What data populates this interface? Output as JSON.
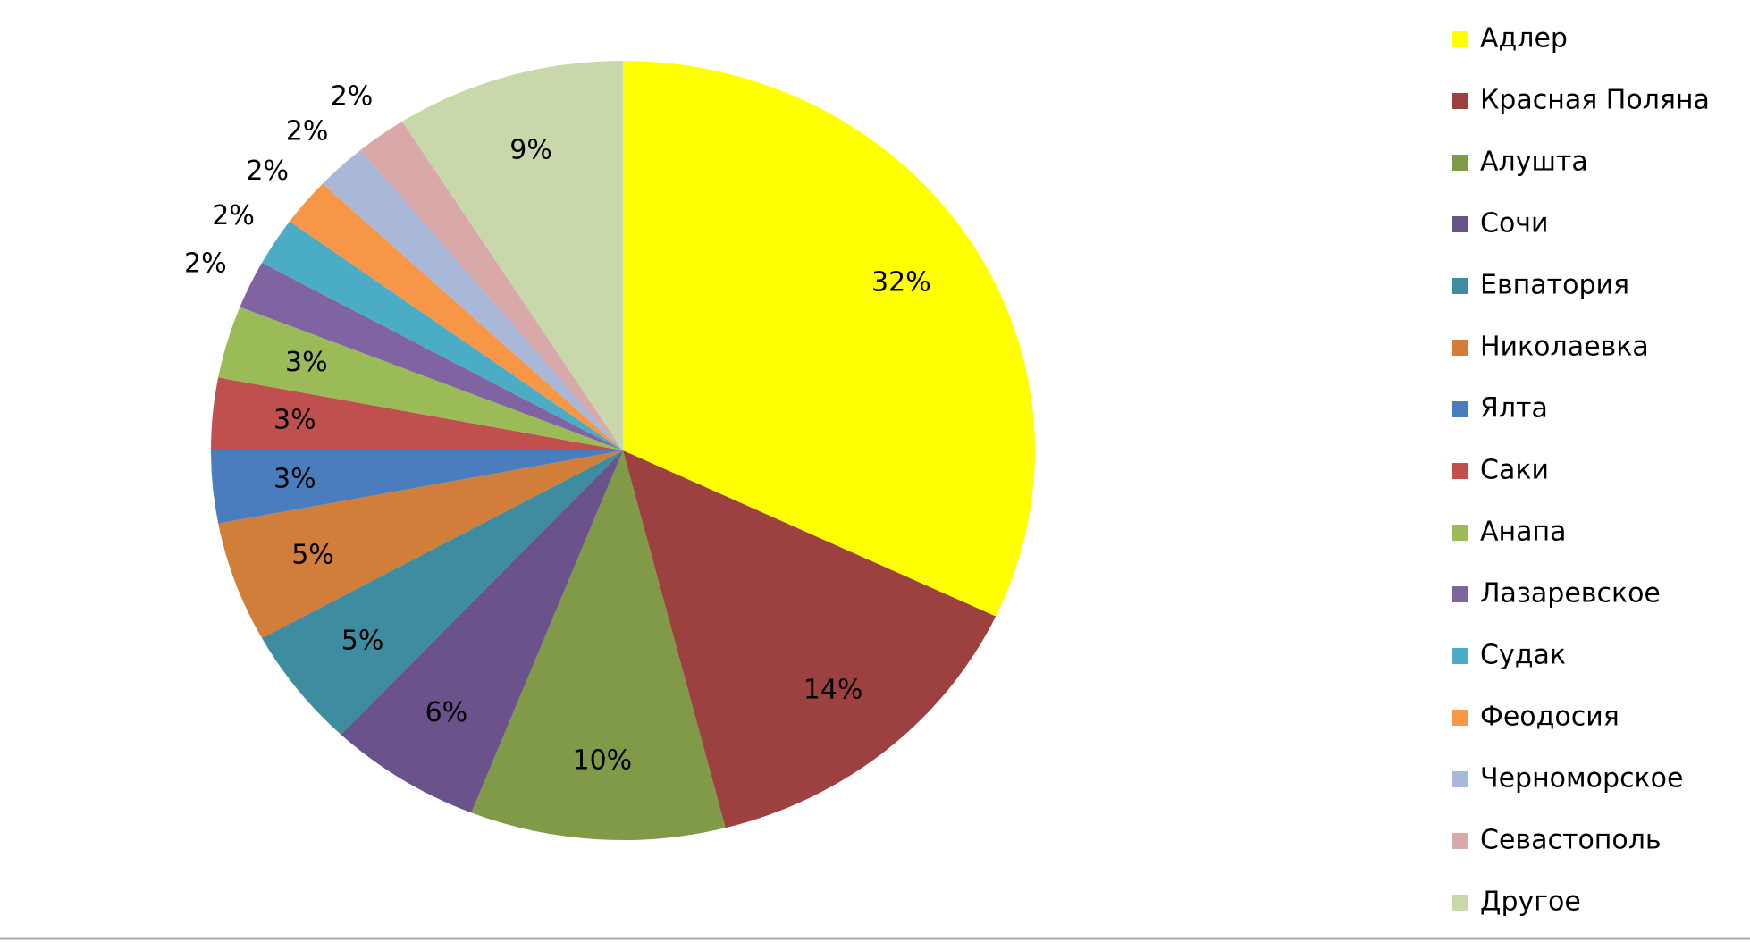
{
  "chart_data": {
    "type": "pie",
    "categories": [
      "Адлер",
      "Красная Поляна",
      "Алушта",
      "Сочи",
      "Евпатория",
      "Николаевка",
      "Ялта",
      "Саки",
      "Анапа",
      "Лазаревское",
      "Судак",
      "Феодосия",
      "Черноморское",
      "Севастополь",
      "Другое"
    ],
    "values": [
      32,
      14,
      10,
      6,
      5,
      5,
      3,
      3,
      3,
      2,
      2,
      2,
      2,
      2,
      9
    ],
    "value_labels": [
      "32%",
      "14%",
      "10%",
      "6%",
      "5%",
      "5%",
      "3%",
      "3%",
      "3%",
      "2%",
      "2%",
      "2%",
      "2%",
      "2%",
      "9%"
    ],
    "colors": [
      "#ffff00",
      "#9c4040",
      "#809a48",
      "#6a528a",
      "#3d8ca0",
      "#d07e3a",
      "#4a7dbd",
      "#c0504d",
      "#9bbb59",
      "#8064a2",
      "#4bacc6",
      "#f79646",
      "#a9b8d9",
      "#d9a9a9",
      "#c8d8aa"
    ],
    "legend": "right"
  }
}
